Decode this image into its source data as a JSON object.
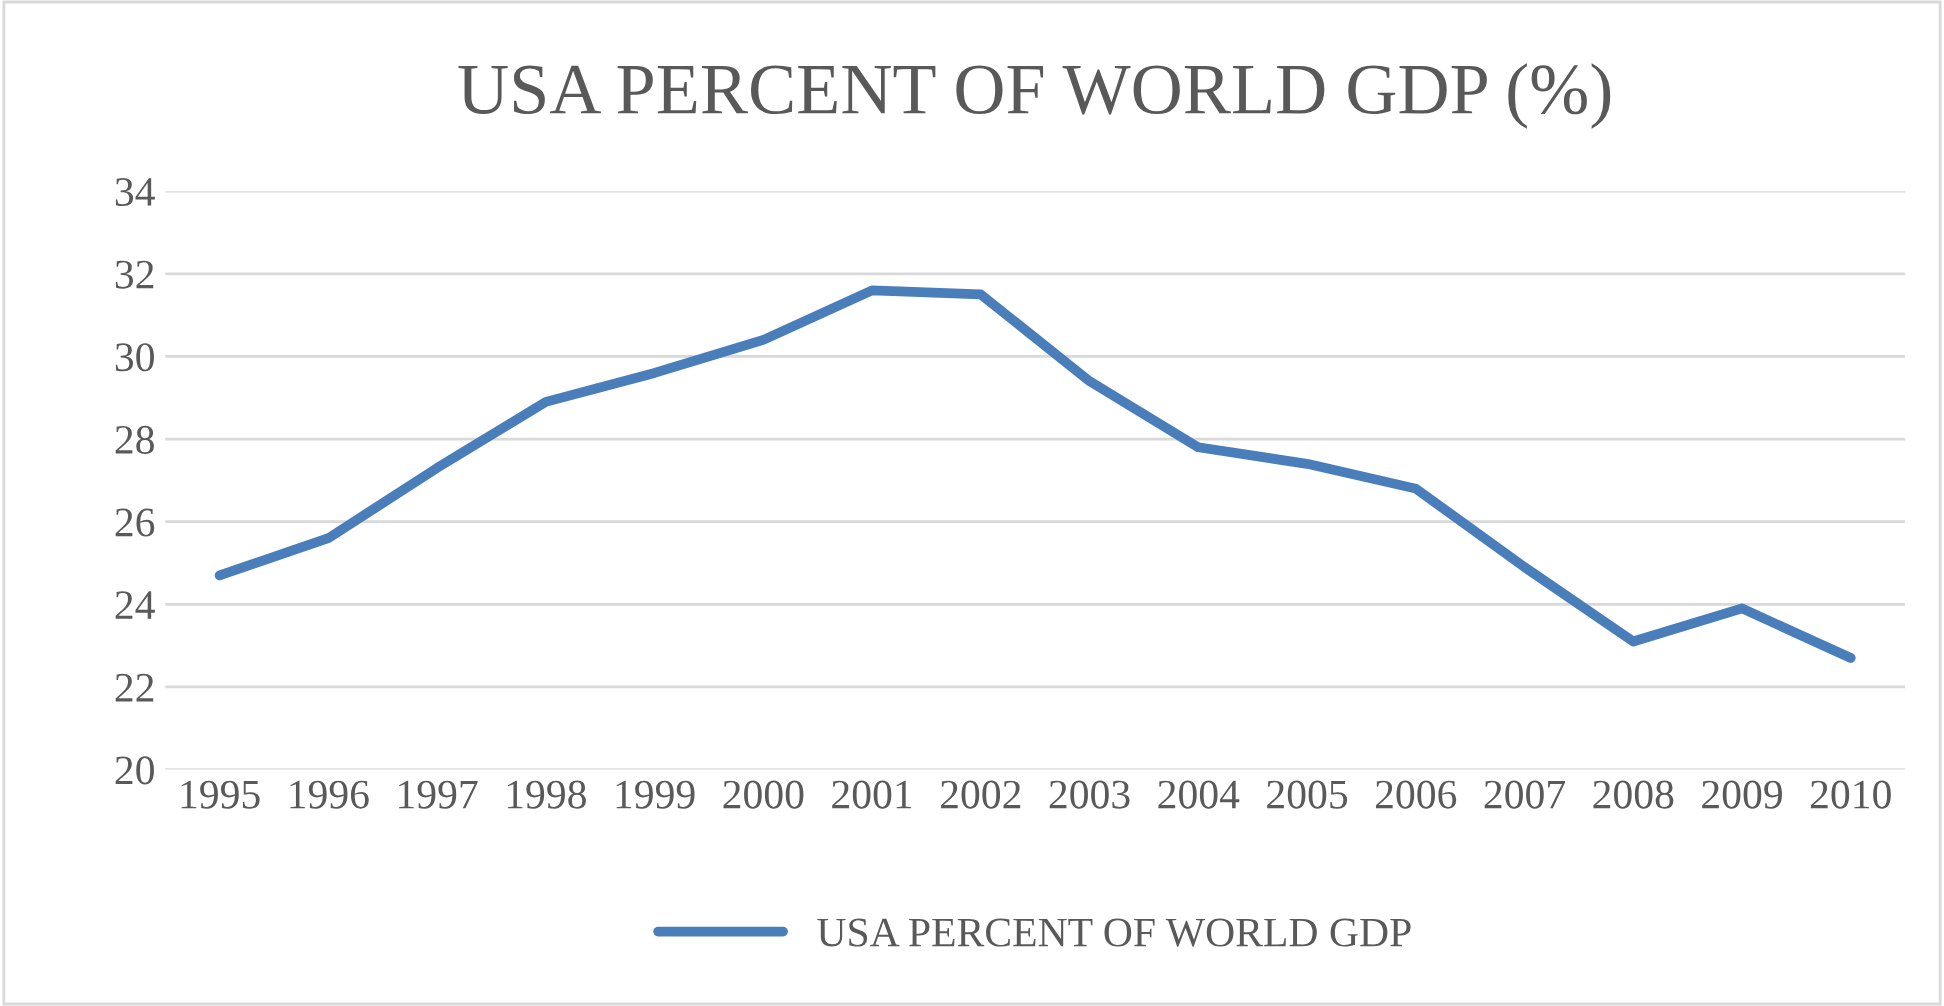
{
  "chart_data": {
    "type": "line",
    "title": "USA PERCENT OF WORLD GDP (%)",
    "categories": [
      "1995",
      "1996",
      "1997",
      "1998",
      "1999",
      "2000",
      "2001",
      "2002",
      "2003",
      "2004",
      "2005",
      "2006",
      "2007",
      "2008",
      "2009",
      "2010"
    ],
    "series": [
      {
        "name": "USA PERCENT OF WORLD GDP",
        "color": "#4a7ebb",
        "values": [
          24.7,
          25.6,
          27.3,
          28.9,
          29.6,
          30.4,
          31.6,
          31.5,
          29.4,
          27.8,
          27.4,
          26.8,
          24.9,
          23.1,
          23.9,
          22.7
        ]
      }
    ],
    "ylim": [
      20,
      34
    ],
    "yticks": [
      20,
      22,
      24,
      26,
      28,
      30,
      32,
      34
    ],
    "grid": "y",
    "legend": "bottom",
    "marker": "none",
    "line_style": "solid"
  }
}
